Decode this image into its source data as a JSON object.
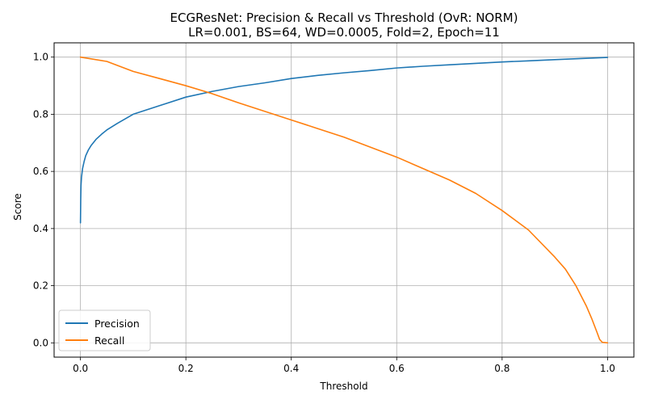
{
  "chart_data": {
    "type": "line",
    "title": "ECGResNet: Precision & Recall vs Threshold (OvR: NORM)",
    "subtitle": "LR=0.001, BS=64, WD=0.0005, Fold=2, Epoch=11",
    "xlabel": "Threshold",
    "ylabel": "Score",
    "xlim": [
      -0.05,
      1.05
    ],
    "ylim": [
      -0.05,
      1.05
    ],
    "xticks": [
      0.0,
      0.2,
      0.4,
      0.6,
      0.8,
      1.0
    ],
    "xtick_labels": [
      "0.0",
      "0.2",
      "0.4",
      "0.6",
      "0.8",
      "1.0"
    ],
    "yticks": [
      0.0,
      0.2,
      0.4,
      0.6,
      0.8,
      1.0
    ],
    "ytick_labels": [
      "0.0",
      "0.2",
      "0.4",
      "0.6",
      "0.8",
      "1.0"
    ],
    "grid": true,
    "legend_position": "lower-left",
    "series": [
      {
        "name": "Precision",
        "color": "#1f77b4",
        "x": [
          0.0,
          0.0005,
          0.001,
          0.002,
          0.004,
          0.007,
          0.01,
          0.015,
          0.02,
          0.03,
          0.04,
          0.05,
          0.07,
          0.1,
          0.15,
          0.2,
          0.25,
          0.3,
          0.35,
          0.4,
          0.45,
          0.5,
          0.55,
          0.6,
          0.65,
          0.7,
          0.75,
          0.8,
          0.85,
          0.9,
          0.95,
          1.0
        ],
        "y": [
          0.42,
          0.5,
          0.55,
          0.58,
          0.61,
          0.635,
          0.655,
          0.675,
          0.69,
          0.713,
          0.73,
          0.745,
          0.768,
          0.8,
          0.83,
          0.86,
          0.88,
          0.897,
          0.91,
          0.925,
          0.936,
          0.945,
          0.953,
          0.962,
          0.968,
          0.973,
          0.978,
          0.983,
          0.987,
          0.991,
          0.995,
          0.999
        ]
      },
      {
        "name": "Recall",
        "color": "#ff7f0e",
        "x": [
          0.0,
          0.05,
          0.1,
          0.15,
          0.2,
          0.25,
          0.3,
          0.35,
          0.4,
          0.45,
          0.5,
          0.55,
          0.6,
          0.65,
          0.7,
          0.75,
          0.8,
          0.85,
          0.9,
          0.92,
          0.94,
          0.96,
          0.97,
          0.98,
          0.985,
          0.99,
          1.0
        ],
        "y": [
          1.0,
          0.985,
          0.95,
          0.925,
          0.9,
          0.872,
          0.84,
          0.81,
          0.78,
          0.75,
          0.72,
          0.685,
          0.65,
          0.61,
          0.57,
          0.523,
          0.463,
          0.395,
          0.3,
          0.258,
          0.2,
          0.128,
          0.085,
          0.037,
          0.012,
          0.002,
          0.0
        ]
      }
    ]
  }
}
